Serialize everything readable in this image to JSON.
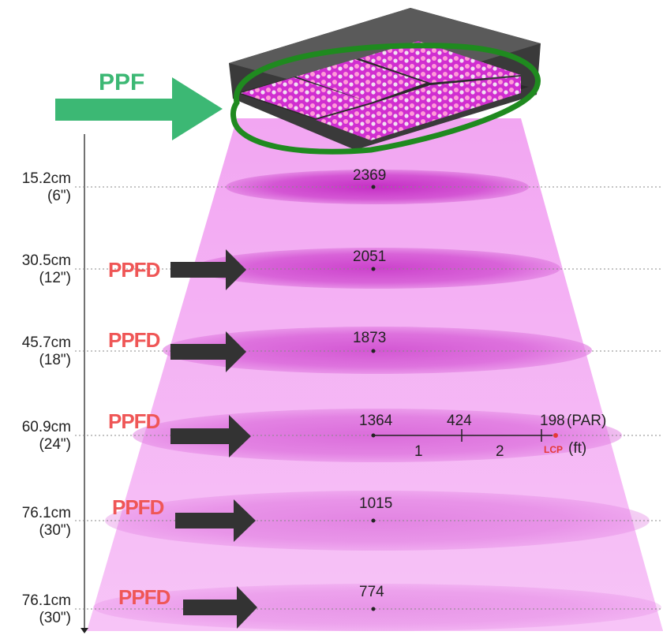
{
  "ppf_label": "PPF",
  "ppfd_label": "PPFD",
  "levels": [
    {
      "distance_cm": "15.2cm",
      "distance_in": "(6\")",
      "ppfd": "2369"
    },
    {
      "distance_cm": "30.5cm",
      "distance_in": "(12\")",
      "ppfd": "2051"
    },
    {
      "distance_cm": "45.7cm",
      "distance_in": "(18\")",
      "ppfd": "1873"
    },
    {
      "distance_cm": "60.9cm",
      "distance_in": "(24\")",
      "ppfd": "1364"
    },
    {
      "distance_cm": "76.1cm",
      "distance_in": "(30\")",
      "ppfd": "1015"
    },
    {
      "distance_cm": "76.1cm",
      "distance_in": "(30\")",
      "ppfd": "774"
    }
  ],
  "spread": {
    "value_1ft": "424",
    "value_2ft": "198",
    "par_unit": "(PAR)",
    "tick_1": "1",
    "tick_2": "2",
    "lcp_label": "LCP",
    "ft_unit": "(ft)"
  },
  "colors": {
    "beam": "#ee88ee",
    "ellipse": "#cc44cc",
    "ppf_arrow": "#3cb874",
    "ppfd_text": "#ef5656",
    "ppfd_arrow": "#333333",
    "outline": "#1f8a1f"
  }
}
